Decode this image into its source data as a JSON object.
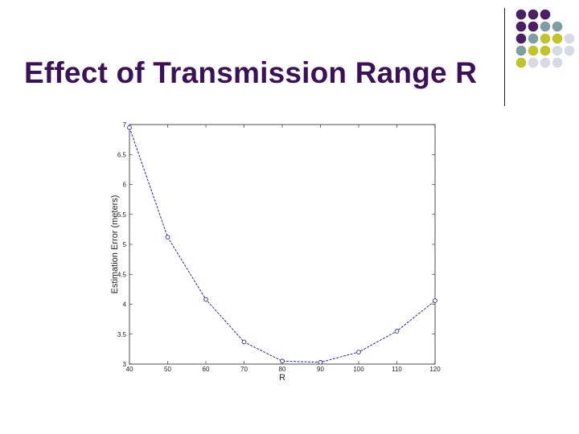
{
  "slide": {
    "title": "Effect of Transmission Range R"
  },
  "decoration": {
    "dot_colors": {
      "purple": "#4a2063",
      "teal": "#7e9ea3",
      "olive": "#c2c22a",
      "lavender": "#d9d9e6"
    },
    "dot_rows": [
      [
        "purple",
        "purple",
        "purple"
      ],
      [
        "purple",
        "purple",
        "teal",
        "teal"
      ],
      [
        "purple",
        "teal",
        "olive",
        "olive",
        "lavender"
      ],
      [
        "teal",
        "olive",
        "olive",
        "lavender",
        "lavender"
      ],
      [
        "olive",
        "lavender",
        "lavender",
        "lavender"
      ]
    ]
  },
  "chart_data": {
    "type": "line",
    "title": "",
    "xlabel": "R",
    "ylabel": "Estimation Error (meters)",
    "xlim": [
      40,
      120
    ],
    "ylim": [
      3,
      7
    ],
    "x_ticks": [
      40,
      50,
      60,
      70,
      80,
      90,
      100,
      110,
      120
    ],
    "y_ticks": [
      3,
      3.5,
      4,
      4.5,
      5,
      5.5,
      6,
      6.5,
      7
    ],
    "grid": false,
    "series": [
      {
        "color": "#2b2b8c",
        "marker": "circle",
        "x": [
          40,
          50,
          60,
          70,
          80,
          90,
          100,
          110,
          120
        ],
        "y": [
          6.95,
          5.12,
          4.08,
          3.37,
          3.05,
          3.03,
          3.2,
          3.55,
          4.06
        ]
      }
    ]
  }
}
